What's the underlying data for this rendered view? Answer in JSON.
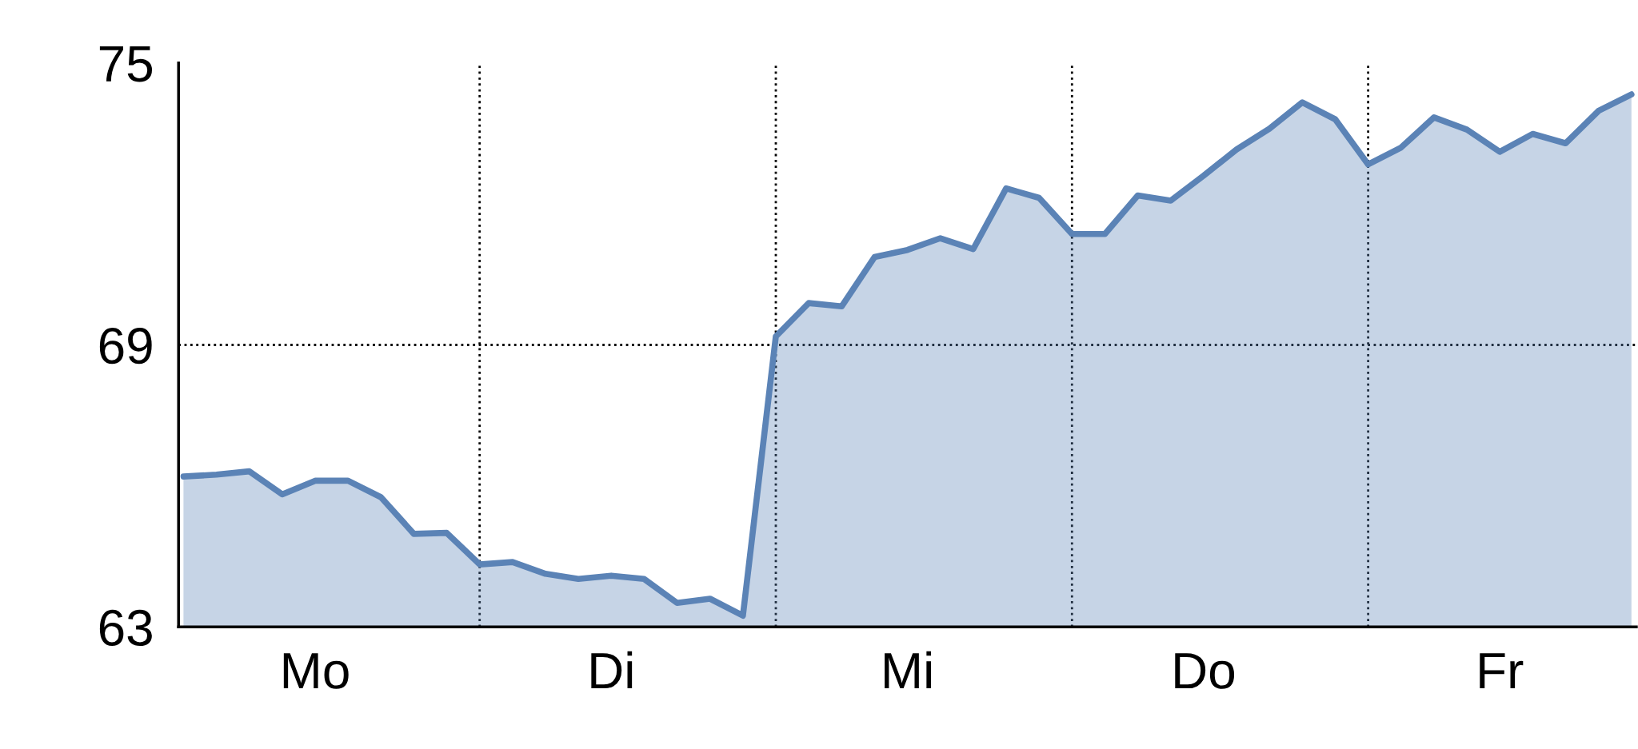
{
  "chart_data": {
    "type": "area",
    "categories": [
      null,
      null,
      null,
      null,
      "Mo",
      null,
      null,
      null,
      null,
      null,
      null,
      null,
      null,
      "Di",
      null,
      null,
      null,
      null,
      null,
      null,
      null,
      null,
      "Mi",
      null,
      null,
      null,
      null,
      null,
      null,
      null,
      null,
      "Do",
      null,
      null,
      null,
      null,
      null,
      null,
      null,
      null,
      "Fr",
      null,
      null,
      null,
      null
    ],
    "series": [
      {
        "color": "#5b83b6",
        "values": [
          66.2,
          66.24,
          66.31,
          65.82,
          66.11,
          66.11,
          65.76,
          64.98,
          65.0,
          64.33,
          64.38,
          64.13,
          64.02,
          64.09,
          64.02,
          63.51,
          63.6,
          63.24,
          69.18,
          69.89,
          69.82,
          70.87,
          71.02,
          71.27,
          71.04,
          72.33,
          72.13,
          71.36,
          71.36,
          72.18,
          72.07,
          72.6,
          73.16,
          73.6,
          74.16,
          73.8,
          72.84,
          73.2,
          73.84,
          73.58,
          73.11,
          73.49,
          73.29,
          73.98,
          74.33
        ]
      }
    ],
    "ylim": [
      63,
      75
    ],
    "yticks": [
      63,
      69,
      75
    ],
    "ref_lines": [
      {
        "axis": "y",
        "value": 69,
        "line_style": "dotted",
        "color": "#000000"
      }
    ],
    "grid": "x",
    "legend": false,
    "marker": "none",
    "line_style": "solid"
  }
}
